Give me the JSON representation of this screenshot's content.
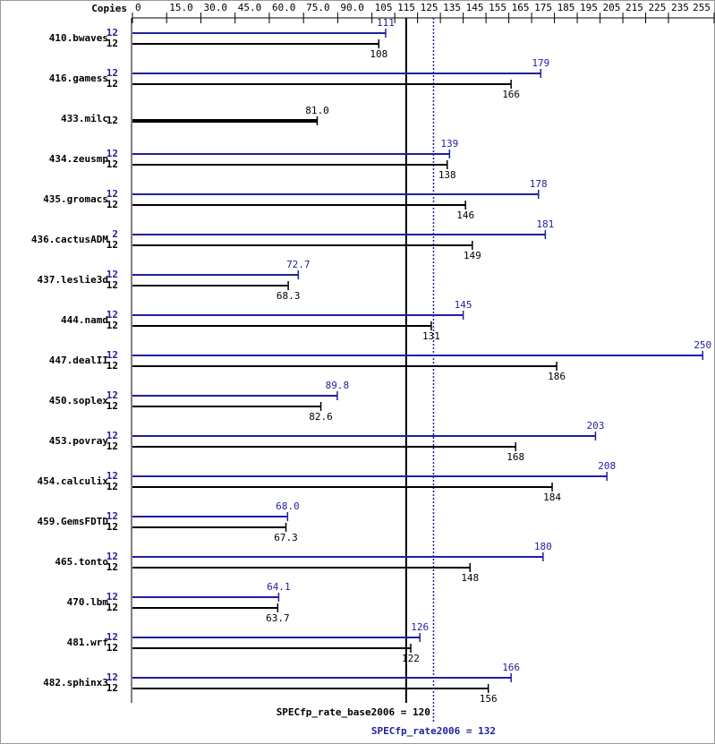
{
  "chart_data": {
    "type": "bar",
    "orientation": "horizontal",
    "copies_label": "Copies",
    "categories": [
      "410.bwaves",
      "416.gamess",
      "433.milc",
      "434.zeusmp",
      "435.gromacs",
      "436.cactusADM",
      "437.leslie3d",
      "444.namd",
      "447.dealII",
      "450.soplex",
      "453.povray",
      "454.calculix",
      "459.GemsFDTD",
      "465.tonto",
      "470.lbm",
      "481.wrf",
      "482.sphinx3"
    ],
    "series": [
      {
        "color": "#1f1f9f",
        "values": [
          111,
          179,
          null,
          139,
          178,
          181,
          72.7,
          145,
          250,
          89.8,
          203,
          208,
          68.0,
          180,
          64.1,
          126,
          166
        ],
        "value_labels": [
          "111",
          "179",
          null,
          "139",
          "178",
          "181",
          "72.7",
          "145",
          "250",
          "89.8",
          "203",
          "208",
          "68.0",
          "180",
          "64.1",
          "126",
          "166"
        ],
        "copies": [
          12,
          12,
          null,
          12,
          12,
          2,
          12,
          12,
          12,
          12,
          12,
          12,
          12,
          12,
          12,
          12,
          12
        ]
      },
      {
        "color": "#000000",
        "values": [
          108,
          166,
          81.0,
          138,
          146,
          149,
          68.3,
          131,
          186,
          82.6,
          168,
          184,
          67.3,
          148,
          63.7,
          122,
          156
        ],
        "value_labels": [
          "108",
          "166",
          "81.0",
          "138",
          "146",
          "149",
          "68.3",
          "131",
          "186",
          "82.6",
          "168",
          "184",
          "67.3",
          "148",
          "63.7",
          "122",
          "156"
        ],
        "copies": [
          12,
          12,
          12,
          12,
          12,
          12,
          12,
          12,
          12,
          12,
          12,
          12,
          12,
          12,
          12,
          12,
          12
        ]
      }
    ],
    "xlim": [
      0,
      255
    ],
    "xticks": [
      0,
      {
        "value": 15,
        "label": "15.0"
      },
      {
        "value": 30,
        "label": "30.0"
      },
      {
        "value": 45,
        "label": "45.0"
      },
      {
        "value": 60,
        "label": "60.0"
      },
      {
        "value": 75,
        "label": "75.0"
      },
      {
        "value": 90,
        "label": "90.0"
      },
      105,
      115,
      125,
      135,
      145,
      155,
      165,
      175,
      185,
      195,
      205,
      215,
      225,
      235,
      255
    ],
    "reference_lines": [
      {
        "value": 120,
        "label": "SPECfp_rate_base2006 = 120",
        "color": "#000000",
        "style": "solid"
      },
      {
        "value": 132,
        "label": "SPECfp_rate2006 = 132",
        "color": "#1f1f9f",
        "style": "dotted"
      }
    ]
  }
}
